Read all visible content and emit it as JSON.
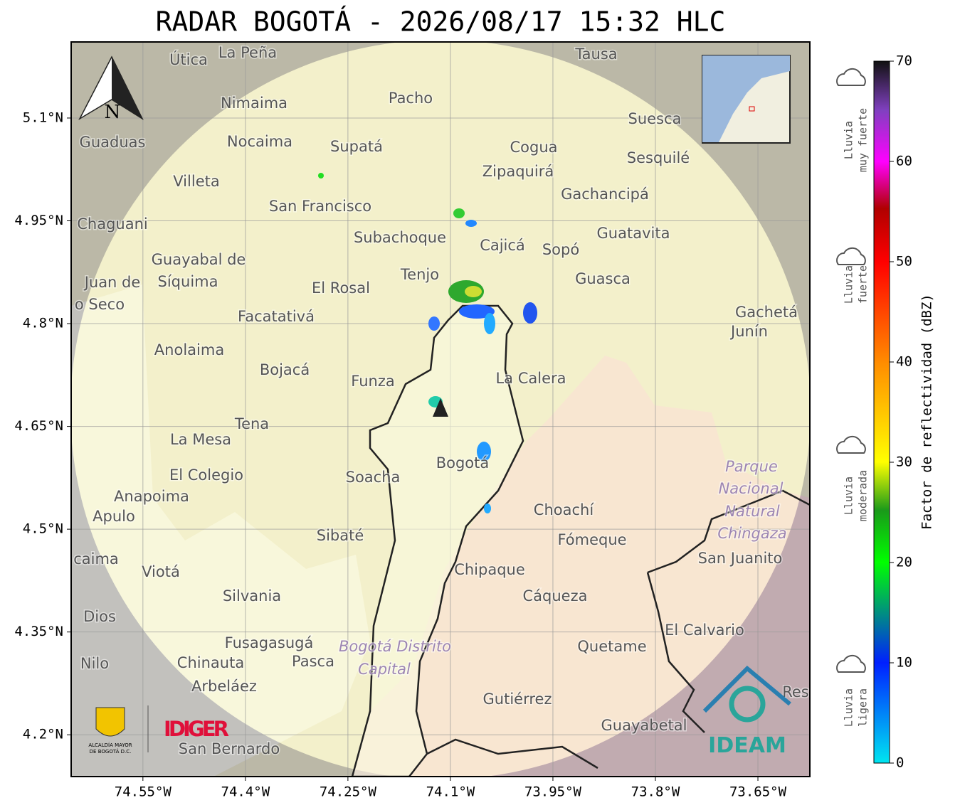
{
  "title": "RADAR BOGOTÁ - 2026/08/17 15:32 HLC",
  "map": {
    "xlim": [
      -74.655,
      -73.574
    ],
    "ylim": [
      4.139,
      5.211
    ],
    "xticks": [
      {
        "value": -74.55,
        "label": "74.55°W"
      },
      {
        "value": -74.4,
        "label": "74.4°W"
      },
      {
        "value": -74.25,
        "label": "74.25°W"
      },
      {
        "value": -74.1,
        "label": "74.1°W"
      },
      {
        "value": -73.95,
        "label": "73.95°W"
      },
      {
        "value": -73.8,
        "label": "73.8°W"
      },
      {
        "value": -73.65,
        "label": "73.65°W"
      }
    ],
    "yticks": [
      {
        "value": 5.1,
        "label": "5.1°N"
      },
      {
        "value": 4.95,
        "label": "4.95°N"
      },
      {
        "value": 4.8,
        "label": "4.8°N"
      },
      {
        "value": 4.65,
        "label": "4.65°N"
      },
      {
        "value": 4.5,
        "label": "4.5°N"
      },
      {
        "value": 4.35,
        "label": "4.35°N"
      },
      {
        "value": 4.2,
        "label": "4.2°N"
      }
    ],
    "grid": true,
    "north": "N",
    "places": [
      "La Peña",
      "Útica",
      "Tausa",
      "Pacho",
      "Nimaima",
      "Suesca",
      "Guaduas",
      "Nocaima",
      "Supatá",
      "Cogua",
      "Sesquilé",
      "Villeta",
      "Zipaquirá",
      "Gachancipá",
      "San Francisco",
      "Chaguani",
      "Guatavita",
      "Subachoque",
      "Cajicá",
      "Sopó",
      "Guayabal de",
      "Síquima",
      "Tenjo",
      "Guasca",
      "Juan de",
      "El Rosal",
      "o Seco",
      "Facatativá",
      "Gachetá",
      "Junín",
      "Anolaima",
      "Bojacá",
      "Funza",
      "La Calera",
      "Tena",
      "La Mesa",
      "Parque",
      "El Colegio",
      "Soacha",
      "Bogotá",
      "Nacional",
      "Anapoima",
      "Apulo",
      "Choachí",
      "Natural",
      "Chingaza",
      "Sibaté",
      "Fómeque",
      "San Juanito",
      "caima",
      "Viotá",
      "Chipaque",
      "Silvania",
      "Cáqueza",
      "Dios",
      "El Calvario",
      "Fusagasugá",
      "Bogotá Distrito",
      "Quetame",
      "Nilo",
      "Chinauta",
      "Pasca",
      "Capital",
      "Arbeláez",
      "Gutiérrez",
      "Res",
      "Guayabetal",
      "San Bernardo"
    ]
  },
  "colorbar": {
    "label": "Factor de reflectividad (dBZ)",
    "lim": [
      0,
      70
    ],
    "ticks": [
      0,
      10,
      20,
      30,
      40,
      50,
      60,
      70
    ]
  },
  "legend": [
    [
      "Lluvia",
      "muy fuerte"
    ],
    [
      "Lluvia",
      "fuerte"
    ],
    [
      "Lluvia",
      "moderada"
    ],
    [
      "Lluvia",
      "ligera"
    ]
  ],
  "logos": {
    "alcaldia": [
      "ALCALDÍA MAYOR",
      "DE BOGOTÁ D.C."
    ],
    "idiger": "IDIGER",
    "ideam": "IDEAM"
  }
}
